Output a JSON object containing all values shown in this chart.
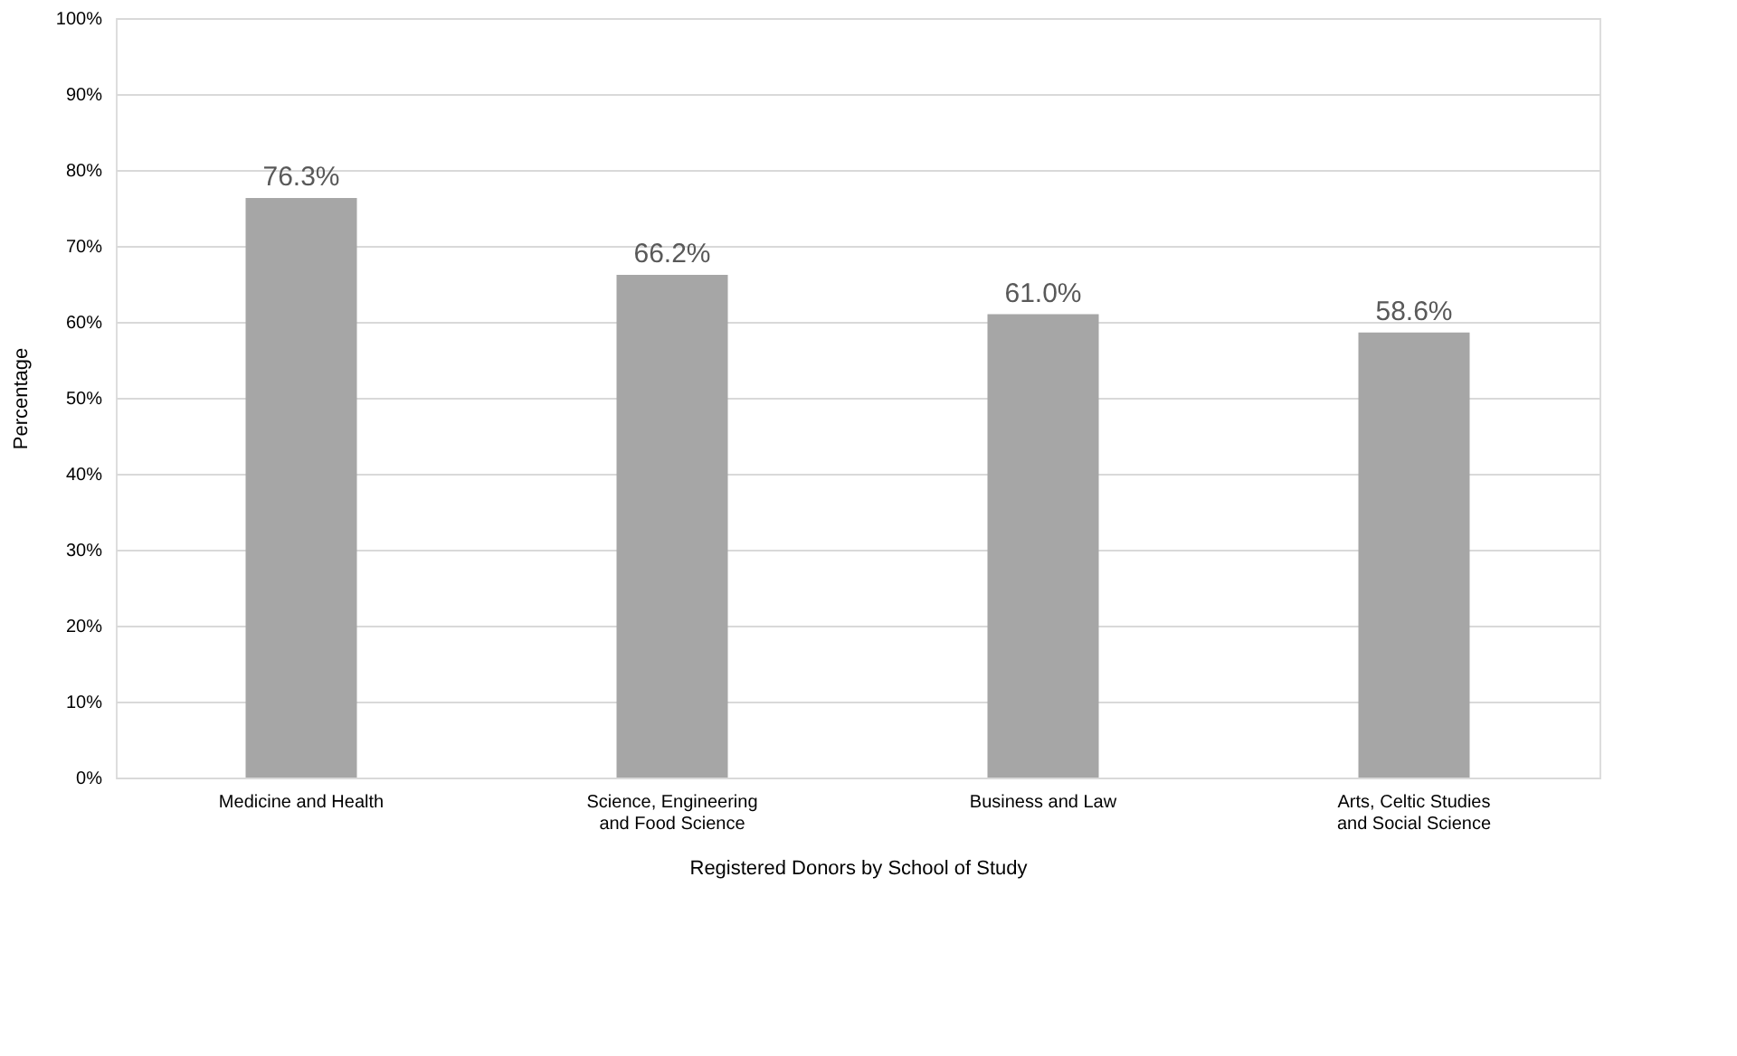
{
  "chart_data": {
    "type": "bar",
    "xlabel": "Registered Donors by School of Study",
    "ylabel": "Percentage",
    "categories": [
      "Medicine and Health",
      "Science, Engineering and Food Science",
      "Business and Law",
      "Arts, Celtic Studies and Social Science"
    ],
    "values": [
      76.3,
      66.2,
      61.0,
      58.6
    ],
    "color": "#a6a6a6",
    "value_labels": [
      "76.3%",
      "66.2%",
      "61.0%",
      "58.6%"
    ],
    "ylim": [
      0,
      100
    ],
    "yticks": [
      {
        "value": 0,
        "label": "0%"
      },
      {
        "value": 10,
        "label": "10%"
      },
      {
        "value": 20,
        "label": "20%"
      },
      {
        "value": 30,
        "label": "30%"
      },
      {
        "value": 40,
        "label": "40%"
      },
      {
        "value": 50,
        "label": "50%"
      },
      {
        "value": 60,
        "label": "60%"
      },
      {
        "value": 70,
        "label": "70%"
      },
      {
        "value": 80,
        "label": "80%"
      },
      {
        "value": 90,
        "label": "90%"
      },
      {
        "value": 100,
        "label": "100%"
      }
    ],
    "grid": "y"
  }
}
